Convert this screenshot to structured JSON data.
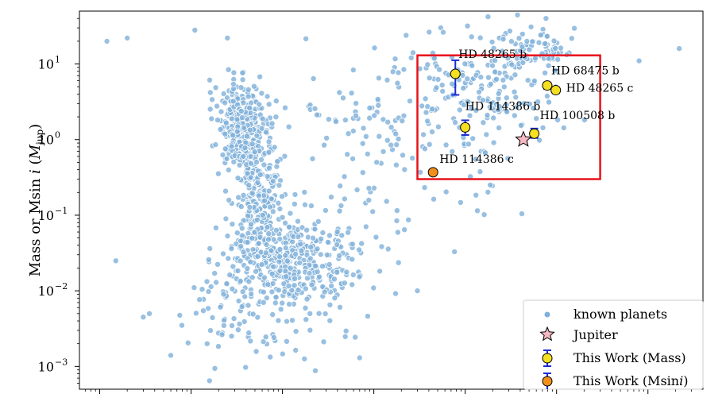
{
  "chart_data": {
    "type": "scatter",
    "ylabel_text": "Mass or Msin ",
    "ylabel_italic": "i",
    "ylabel_unit_open": " (",
    "ylabel_unit_main": "M",
    "ylabel_unit_sub": "jup",
    "ylabel_unit_close": ")",
    "yscale": "log",
    "xscale": "log",
    "ylim": [
      0.0005,
      50
    ],
    "xlim": [
      0.06,
      400000
    ],
    "yticks": [
      {
        "value": 10,
        "base": "10",
        "exp": "1"
      },
      {
        "value": 1,
        "base": "10",
        "exp": "0"
      },
      {
        "value": 0.1,
        "base": "10",
        "exp": "−1"
      },
      {
        "value": 0.01,
        "base": "10",
        "exp": "−2"
      },
      {
        "value": 0.001,
        "base": "10",
        "exp": "−3"
      }
    ],
    "xtick_decades": [
      0.1,
      1,
      10,
      100,
      1000,
      10000,
      100000
    ],
    "grid": false,
    "legend_position": "bottom-right",
    "highlight_box": {
      "x": [
        300,
        30000
      ],
      "y": [
        0.3,
        13
      ],
      "color": "#e8121a"
    },
    "colors": {
      "known": "#7fb0d9",
      "jupiter": "#f7b8c4",
      "mass": "#f4e020",
      "msini": "#f28e1c",
      "errorbar": "#1a2bd6"
    },
    "series": [
      {
        "name": "known planets",
        "marker": "circle",
        "color": "#7fb0d9"
      },
      {
        "name": "Jupiter",
        "marker": "star",
        "color": "#f7b8c4",
        "points": [
          {
            "x": 4332,
            "y": 1.0
          }
        ]
      },
      {
        "name": "This Work (Mass)",
        "marker": "circle",
        "color": "#f4e020",
        "points": [
          {
            "label": "HD 48265 b",
            "x": 780,
            "y": 7.4,
            "err_lo": 3.5,
            "err_hi": 3.8
          },
          {
            "label": "HD 114386 b",
            "x": 1000,
            "y": 1.45,
            "err_lo": 0.3,
            "err_hi": 0.35
          },
          {
            "label": "HD 100508 b",
            "x": 5700,
            "y": 1.2,
            "err_lo": 0.15,
            "err_hi": 0.2
          },
          {
            "label": "HD 68475 b",
            "x": 7900,
            "y": 5.2,
            "err_lo": 0.5,
            "err_hi": 0.5
          },
          {
            "label": "HD 48265 c",
            "x": 9800,
            "y": 4.5,
            "err_lo": 0.4,
            "err_hi": 0.4
          }
        ]
      },
      {
        "name": "This Work (Msin i)",
        "name_prefix": "This Work (Msin",
        "name_italic": "i",
        "name_suffix": ")",
        "marker": "circle",
        "color": "#f28e1c",
        "points": [
          {
            "label": "HD 114386 c",
            "x": 445,
            "y": 0.37
          }
        ]
      }
    ],
    "known_planets_note": "dense field of ~1300 known exoplanets; two clumps (hot Jupiters near 1-10 d, super-Earths near 1-30 d) and long-period giants"
  }
}
